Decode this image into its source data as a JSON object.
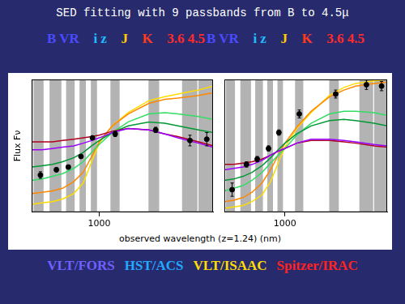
{
  "title": "SED fitting with 9 passbands from B to 4.5μ",
  "band_labels": [
    [
      {
        "text": "B VR",
        "color": "#4a4aff"
      },
      {
        "text": "i z",
        "color": "#22bbff"
      },
      {
        "text": "J",
        "color": "#ffcc00"
      },
      {
        "text": "K",
        "color": "#ff3a1a"
      },
      {
        "text": "3.6 4.5",
        "color": "#ff2a2a"
      }
    ],
    [
      {
        "text": "B VR",
        "color": "#4a4aff"
      },
      {
        "text": "i z",
        "color": "#22bbff"
      },
      {
        "text": "J",
        "color": "#ffcc00"
      },
      {
        "text": "K",
        "color": "#ff3a1a"
      },
      {
        "text": "3.6 4.5",
        "color": "#ff2a2a"
      }
    ]
  ],
  "xlabel": "observed wavelength (z=1.24) (nm)",
  "instruments": [
    {
      "text": "VLT/FORS",
      "color": "#7060ff"
    },
    {
      "text": "HST/ACS",
      "color": "#22aaff"
    },
    {
      "text": "VLT/ISAAC",
      "color": "#ffdd00"
    },
    {
      "text": "Spitzer/IRAC",
      "color": "#ff2222"
    }
  ],
  "chart_data": [
    {
      "type": "line",
      "ylabel": "Flux Fν",
      "log": "x",
      "grid": false,
      "tick_labels": "x",
      "xlim": [
        390,
        4900
      ],
      "xticks": [
        1000
      ],
      "ylim": [
        0,
        10
      ],
      "bands": [
        [
          400,
          460
        ],
        [
          500,
          590
        ],
        [
          630,
          710
        ],
        [
          760,
          830
        ],
        [
          890,
          970
        ],
        [
          1170,
          1330
        ],
        [
          1990,
          2310
        ],
        [
          3180,
          3940
        ],
        [
          4000,
          5000
        ]
      ],
      "series": [
        {
          "color": "#9900ff",
          "x": [
            390,
            450,
            520,
            600,
            700,
            800,
            900,
            1000,
            1200,
            1500,
            2000,
            2500,
            3000,
            4000,
            4900
          ],
          "values": [
            4.7,
            4.7,
            4.8,
            4.9,
            5.0,
            5.2,
            5.4,
            5.6,
            6.0,
            6.3,
            6.2,
            5.9,
            5.6,
            5.2,
            4.9
          ]
        },
        {
          "color": "#b00020",
          "x": [
            390,
            450,
            520,
            600,
            700,
            800,
            900,
            1000,
            1200,
            1500,
            2000,
            2500,
            3000,
            4000,
            4900
          ],
          "values": [
            5.3,
            5.3,
            5.3,
            5.4,
            5.5,
            5.6,
            5.7,
            5.8,
            6.1,
            6.3,
            6.2,
            5.9,
            5.7,
            5.3,
            5.0
          ]
        },
        {
          "color": "#009933",
          "x": [
            390,
            450,
            520,
            600,
            700,
            800,
            900,
            1000,
            1200,
            1500,
            2000,
            2500,
            3000,
            4000,
            4900
          ],
          "values": [
            3.4,
            3.5,
            3.6,
            3.8,
            4.1,
            4.5,
            5.0,
            5.4,
            6.0,
            6.5,
            6.8,
            6.7,
            6.5,
            6.2,
            6.0
          ]
        },
        {
          "color": "#33dd66",
          "x": [
            390,
            450,
            520,
            600,
            700,
            800,
            900,
            1000,
            1200,
            1500,
            2000,
            2500,
            3000,
            4000,
            4900
          ],
          "values": [
            2.4,
            2.5,
            2.7,
            2.9,
            3.3,
            3.8,
            4.5,
            5.1,
            6.0,
            6.8,
            7.4,
            7.5,
            7.4,
            7.2,
            7.0
          ]
        },
        {
          "color": "#ff8800",
          "x": [
            390,
            450,
            520,
            600,
            700,
            800,
            900,
            1000,
            1200,
            1500,
            2000,
            2500,
            3000,
            4000,
            4900
          ],
          "values": [
            1.4,
            1.5,
            1.6,
            1.8,
            2.3,
            3.0,
            4.2,
            5.3,
            6.5,
            7.4,
            8.2,
            8.5,
            8.6,
            8.8,
            9.0
          ]
        },
        {
          "color": "#ffdd00",
          "x": [
            390,
            450,
            520,
            600,
            700,
            800,
            900,
            1000,
            1200,
            1500,
            2000,
            2500,
            3000,
            4000,
            4900
          ],
          "values": [
            0.6,
            0.7,
            0.8,
            1.0,
            1.4,
            2.2,
            3.8,
            5.2,
            6.5,
            7.5,
            8.4,
            8.7,
            8.9,
            9.2,
            9.5
          ]
        },
        {
          "type": "scatter",
          "marker": "circle",
          "color": "#000000",
          "x": [
            440,
            550,
            650,
            775,
            910,
            1250,
            2200,
            3550,
            4490
          ],
          "values": [
            2.8,
            3.2,
            3.4,
            4.2,
            5.6,
            5.9,
            6.2,
            5.4,
            5.5
          ],
          "errors": [
            0.25,
            0.15,
            0.15,
            0.15,
            0.15,
            0.2,
            0.2,
            0.4,
            0.5
          ]
        }
      ]
    },
    {
      "type": "line",
      "log": "x",
      "grid": false,
      "tick_labels": "x",
      "xlim": [
        390,
        4900
      ],
      "xticks": [
        1000
      ],
      "ylim": [
        0,
        10
      ],
      "bands": [
        [
          400,
          460
        ],
        [
          500,
          590
        ],
        [
          630,
          710
        ],
        [
          760,
          830
        ],
        [
          890,
          970
        ],
        [
          1170,
          1330
        ],
        [
          1990,
          2310
        ],
        [
          3180,
          3940
        ],
        [
          4000,
          5000
        ]
      ],
      "series": [
        {
          "color": "#9900ff",
          "x": [
            390,
            450,
            520,
            600,
            700,
            800,
            900,
            1000,
            1200,
            1500,
            2000,
            2500,
            3000,
            4000,
            4900
          ],
          "values": [
            3.2,
            3.3,
            3.4,
            3.6,
            3.9,
            4.3,
            4.6,
            4.8,
            5.2,
            5.5,
            5.5,
            5.4,
            5.3,
            5.1,
            5.0
          ]
        },
        {
          "color": "#b00020",
          "x": [
            390,
            450,
            520,
            600,
            700,
            800,
            900,
            1000,
            1200,
            1500,
            2000,
            2500,
            3000,
            4000,
            4900
          ],
          "values": [
            3.6,
            3.6,
            3.7,
            3.8,
            4.0,
            4.3,
            4.6,
            4.8,
            5.2,
            5.4,
            5.4,
            5.3,
            5.2,
            5.0,
            4.9
          ]
        },
        {
          "color": "#009933",
          "x": [
            390,
            450,
            520,
            600,
            700,
            800,
            900,
            1000,
            1200,
            1500,
            2000,
            2500,
            3000,
            4000,
            4900
          ],
          "values": [
            2.4,
            2.5,
            2.7,
            3.0,
            3.5,
            4.1,
            4.7,
            5.2,
            5.9,
            6.5,
            6.9,
            7.0,
            6.9,
            6.7,
            6.5
          ]
        },
        {
          "color": "#33dd66",
          "x": [
            390,
            450,
            520,
            600,
            700,
            800,
            900,
            1000,
            1200,
            1500,
            2000,
            2500,
            3000,
            4000,
            4900
          ],
          "values": [
            1.6,
            1.8,
            2.0,
            2.4,
            3.0,
            3.7,
            4.3,
            4.8,
            5.8,
            6.7,
            7.4,
            7.6,
            7.6,
            7.5,
            7.3
          ]
        },
        {
          "color": "#ff8800",
          "x": [
            390,
            450,
            520,
            600,
            700,
            800,
            900,
            1000,
            1200,
            1500,
            2000,
            2500,
            3000,
            4000,
            4900
          ],
          "values": [
            0.8,
            0.9,
            1.1,
            1.5,
            2.2,
            3.2,
            4.3,
            5.2,
            6.4,
            7.6,
            8.7,
            9.2,
            9.5,
            9.7,
            9.8
          ]
        },
        {
          "color": "#ffdd00",
          "x": [
            390,
            450,
            520,
            600,
            700,
            800,
            900,
            1000,
            1200,
            1500,
            2000,
            2500,
            3000,
            4000,
            4900
          ],
          "values": [
            0.3,
            0.4,
            0.5,
            0.8,
            1.3,
            2.3,
            3.7,
            4.9,
            6.3,
            7.5,
            8.8,
            9.4,
            9.7,
            9.9,
            10.0
          ]
        },
        {
          "type": "scatter",
          "marker": "circle",
          "color": "#000000",
          "x": [
            440,
            550,
            650,
            775,
            910,
            1250,
            2200,
            3550,
            4490
          ],
          "values": [
            1.7,
            3.6,
            4.0,
            4.8,
            6.0,
            7.4,
            8.9,
            9.6,
            9.5
          ],
          "errors": [
            0.5,
            0.2,
            0.2,
            0.2,
            0.2,
            0.3,
            0.3,
            0.35,
            0.35
          ]
        }
      ]
    }
  ]
}
